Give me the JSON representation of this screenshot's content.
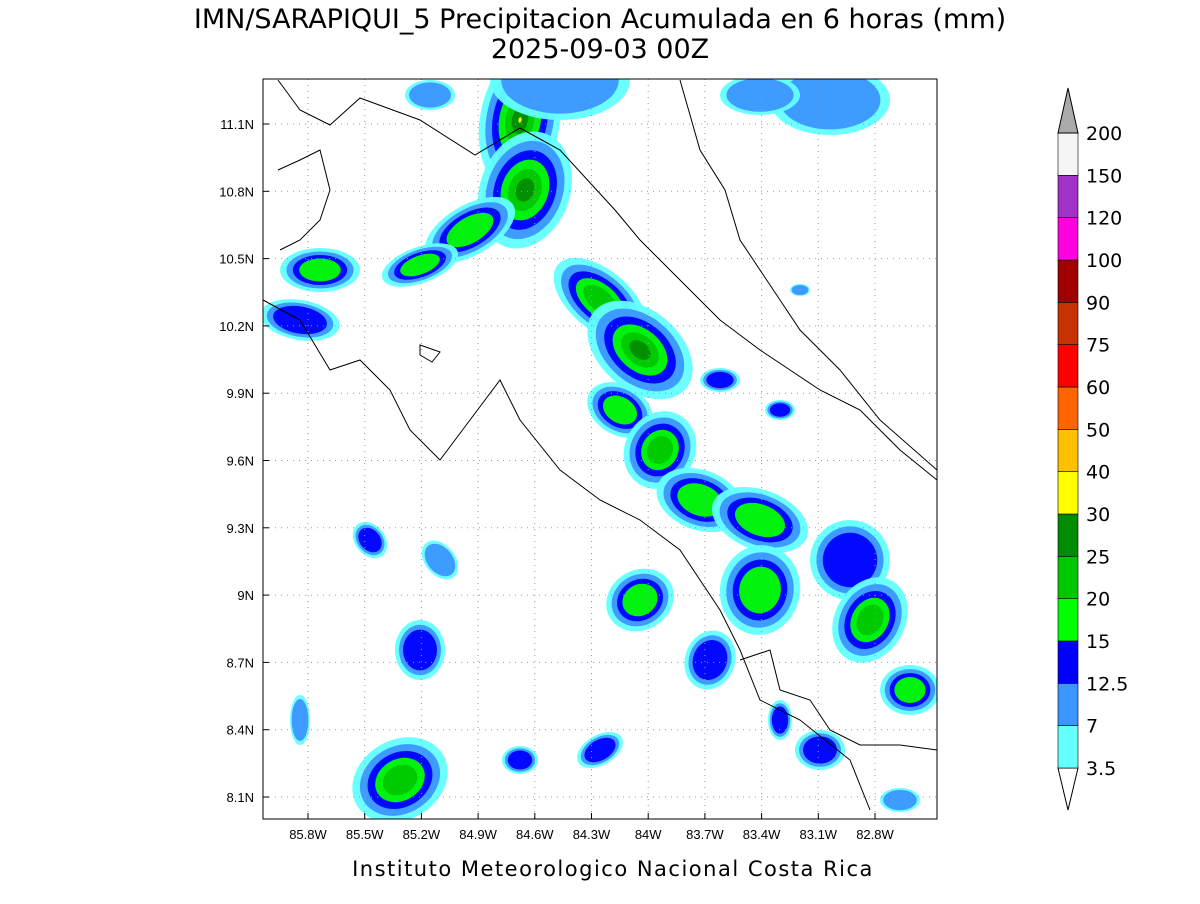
{
  "title": "IMN/SARAPIQUI_5 Precipitacion Acumulada en 6 horas (mm)",
  "subtitle": "2025-09-03 00Z",
  "map": {
    "lon_labels": [
      "85.8W",
      "85.5W",
      "85.2W",
      "84.9W",
      "84.6W",
      "84.3W",
      "84W",
      "83.7W",
      "83.4W",
      "83.1W",
      "82.8W"
    ],
    "lat_labels": [
      "11.1N",
      "10.8N",
      "10.5N",
      "10.2N",
      "9.9N",
      "9.6N",
      "9.3N",
      "9N",
      "8.7N",
      "8.4N",
      "8.1N"
    ]
  },
  "colorbar": {
    "levels": [
      3.5,
      7,
      12.5,
      15,
      20,
      25,
      30,
      40,
      50,
      60,
      75,
      90,
      100,
      120,
      150,
      200
    ],
    "colors": [
      "#ffffff",
      "#64ffff",
      "#3c96ff",
      "#0000ff",
      "#00ff00",
      "#00c800",
      "#008c00",
      "#ffff00",
      "#ffc000",
      "#ff6400",
      "#ff0000",
      "#c83200",
      "#a00000",
      "#ff00e0",
      "#a032c8",
      "#f5f5f5",
      "#aaaaaa"
    ]
  },
  "footer": "Instituto Meteorologico Nacional Costa Rica"
}
